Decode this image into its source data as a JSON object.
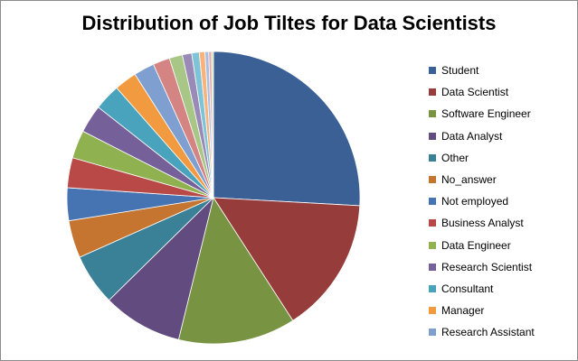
{
  "chart_data": {
    "type": "pie",
    "title": "Distribution of Job Tiltes for Data Scientists",
    "legend_position": "right",
    "slices": [
      {
        "label": "Student",
        "value": 25.0,
        "color": "#3b6095"
      },
      {
        "label": "Data Scientist",
        "value": 14.5,
        "color": "#963c3a"
      },
      {
        "label": "Software Engineer",
        "value": 12.5,
        "color": "#789342"
      },
      {
        "label": "Data Analyst",
        "value": 8.5,
        "color": "#624c7f"
      },
      {
        "label": "Other",
        "value": 5.5,
        "color": "#3a8198"
      },
      {
        "label": "No_answer",
        "value": 4.0,
        "color": "#c5752f"
      },
      {
        "label": "Not employed",
        "value": 3.5,
        "color": "#4673b2"
      },
      {
        "label": "Business Analyst",
        "value": 3.2,
        "color": "#b84947"
      },
      {
        "label": "Data Engineer",
        "value": 3.0,
        "color": "#90b150"
      },
      {
        "label": "Research Scientist",
        "value": 3.0,
        "color": "#76609a"
      },
      {
        "label": "Consultant",
        "value": 2.8,
        "color": "#4aa3bd"
      },
      {
        "label": "Manager",
        "value": 2.4,
        "color": "#f29a3f"
      },
      {
        "label": "Research Assistant",
        "value": 2.2,
        "color": "#7e9fcf"
      },
      {
        "label": "",
        "value": 1.8,
        "color": "#d38483"
      },
      {
        "label": "",
        "value": 1.4,
        "color": "#a8c686"
      },
      {
        "label": "",
        "value": 1.0,
        "color": "#9a8ab7"
      },
      {
        "label": "",
        "value": 0.8,
        "color": "#7fc3d6"
      },
      {
        "label": "",
        "value": 0.6,
        "color": "#f8b27a"
      },
      {
        "label": "",
        "value": 0.4,
        "color": "#a7bfe3"
      },
      {
        "label": "",
        "value": 0.3,
        "color": "#e3a8a7"
      },
      {
        "label": "",
        "value": 0.2,
        "color": "#c7dca9"
      }
    ]
  }
}
